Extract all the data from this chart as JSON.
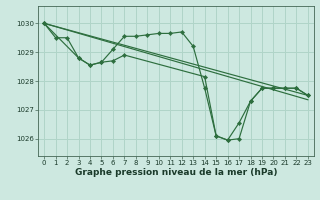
{
  "background_color": "#cde8e0",
  "grid_color": "#b0d4c8",
  "line_color": "#2d6e3e",
  "marker_color": "#2d6e3e",
  "xlabel": "Graphe pression niveau de la mer (hPa)",
  "xlabel_fontsize": 6.5,
  "ylim": [
    1025.4,
    1030.6
  ],
  "xlim": [
    -0.5,
    23.5
  ],
  "yticks": [
    1026,
    1027,
    1028,
    1029,
    1030
  ],
  "xticks": [
    0,
    1,
    2,
    3,
    4,
    5,
    6,
    7,
    8,
    9,
    10,
    11,
    12,
    13,
    14,
    15,
    16,
    17,
    18,
    19,
    20,
    21,
    22,
    23
  ],
  "series1_x": [
    0,
    1,
    2,
    3,
    4,
    5,
    6,
    7,
    8,
    9,
    10,
    11,
    12,
    13,
    14,
    15,
    16,
    17,
    18,
    19,
    20,
    21,
    22,
    23
  ],
  "series1_y": [
    1030.0,
    1029.5,
    1029.5,
    1028.8,
    1028.55,
    1028.65,
    1029.1,
    1029.55,
    1029.55,
    1029.6,
    1029.65,
    1029.65,
    1029.7,
    1029.2,
    1027.75,
    1026.1,
    1025.95,
    1026.0,
    1027.3,
    1027.75,
    1027.75,
    1027.75,
    1027.75,
    1027.5
  ],
  "series2_x": [
    0,
    3,
    4,
    5,
    6,
    7,
    14,
    15,
    16,
    17,
    18,
    19,
    20,
    21,
    22,
    23
  ],
  "series2_y": [
    1030.0,
    1028.8,
    1028.55,
    1028.65,
    1028.7,
    1028.9,
    1028.15,
    1026.1,
    1025.95,
    1026.55,
    1027.3,
    1027.75,
    1027.75,
    1027.75,
    1027.75,
    1027.5
  ],
  "series3_x": [
    0,
    23
  ],
  "series3_y": [
    1030.0,
    1027.5
  ],
  "series4_x": [
    0,
    23
  ],
  "series4_y": [
    1030.0,
    1027.35
  ],
  "tick_fontsize": 5.0
}
